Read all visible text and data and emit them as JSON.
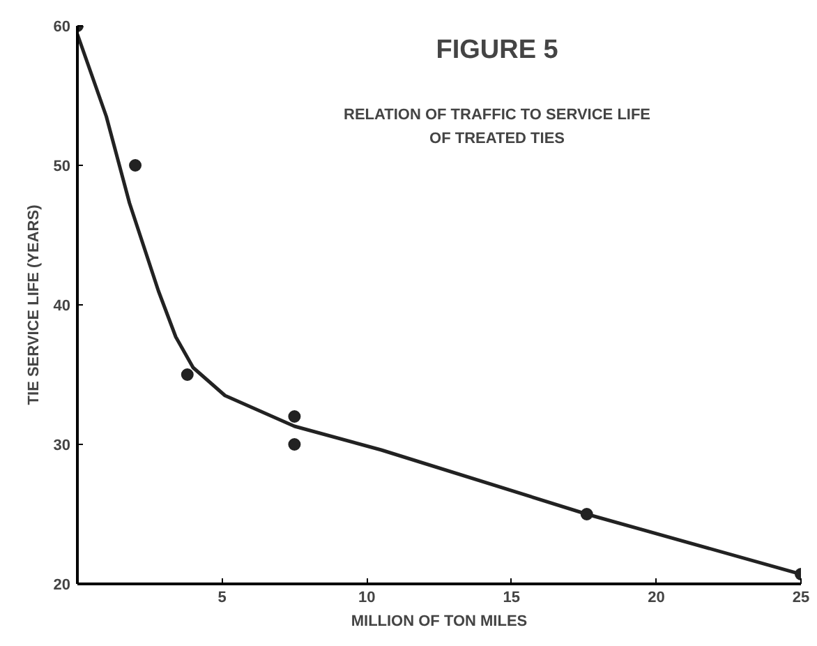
{
  "chart_data": {
    "type": "scatter",
    "title": "FIGURE 5",
    "subtitle": "RELATION OF TRAFFIC TO SERVICE LIFE\nOF TREATED TIES",
    "xlabel": "MILLION OF TON MILES",
    "ylabel": "TIE SERVICE LIFE (YEARS)",
    "series": [
      {
        "marker": "circle",
        "color": "#222222",
        "x": [
          0,
          2,
          3.8,
          7.5,
          7.5,
          17.6,
          25
        ],
        "values": [
          60,
          50,
          35,
          32,
          30,
          25,
          20.7
        ]
      },
      {
        "type": "line",
        "color": "#222222",
        "x": [
          0,
          1,
          1.8,
          2.8,
          3.4,
          4,
          5.1,
          7.5,
          10.5,
          17.6,
          25
        ],
        "values": [
          59.4,
          53.5,
          47.3,
          41,
          37.7,
          35.5,
          33.5,
          31.3,
          29.6,
          25,
          20.7
        ]
      }
    ],
    "xlim": [
      0,
      25
    ],
    "ylim": [
      20,
      60
    ],
    "xticks": [
      5,
      10,
      15,
      20,
      25
    ],
    "yticks": [
      20,
      30,
      40,
      50,
      60
    ],
    "grid": false
  }
}
